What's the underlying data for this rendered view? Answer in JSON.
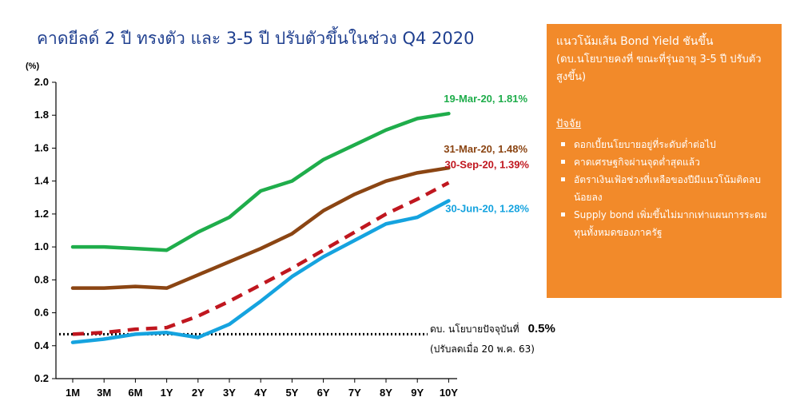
{
  "title": "คาดยีลด์ 2 ปี ทรงตัว และ 3-5 ปี ปรับตัวขึ้นในช่วง Q4 2020",
  "panel": {
    "heading": "แนวโน้มเส้น Bond Yield ชันขึ้น",
    "subheading": "(ดบ.นโยบายคงที่ ขณะที่รุ่นอายุ 3-5 ปี ปรับตัวสูงขึ้น)",
    "factors_title": "ปัจจัย",
    "factors": [
      "ดอกเบี้ยนโยบายอยู่ที่ระดับต่ำต่อไป",
      "คาดเศรษฐกิจผ่านจุดต่ำสุดแล้ว",
      "อัตราเงินเฟ้อช่วงที่เหลือของปีมีแนวโน้มติดลบน้อยลง",
      "Supply bond เพิ่มขึ้นไม่มากเท่าแผนการระดมทุนทั้งหมดของภาครัฐ"
    ]
  },
  "policy_rate": {
    "label": "ดบ. นโยบายปัจจุบันที่",
    "value_text": "0.5%",
    "note": "(ปรับลดเมื่อ 20 พ.ค. 63)",
    "value": 0.47
  },
  "chart_data": {
    "type": "line",
    "ylabel": "(%)",
    "ylim": [
      0.2,
      2.0
    ],
    "yticks": [
      0.2,
      0.4,
      0.6,
      0.8,
      1.0,
      1.2,
      1.4,
      1.6,
      1.8,
      2.0
    ],
    "ytick_labels": [
      "0.2",
      "0.4",
      "0.6",
      "0.8",
      "1.0",
      "1.2",
      "1.4",
      "1.6",
      "1.8",
      "2.0"
    ],
    "categories": [
      "1M",
      "3M",
      "6M",
      "1Y",
      "2Y",
      "3Y",
      "4Y",
      "5Y",
      "6Y",
      "7Y",
      "8Y",
      "9Y",
      "10Y"
    ],
    "series": [
      {
        "name": "19-Mar-20, 1.81%",
        "color": "#1fad4b",
        "dashed": false,
        "values": [
          1.0,
          1.0,
          0.99,
          0.98,
          1.09,
          1.18,
          1.34,
          1.4,
          1.53,
          1.62,
          1.71,
          1.78,
          1.81
        ]
      },
      {
        "name": "31-Mar-20, 1.48%",
        "color": "#8b4513",
        "dashed": false,
        "values": [
          0.75,
          0.75,
          0.76,
          0.75,
          0.83,
          0.91,
          0.99,
          1.08,
          1.22,
          1.32,
          1.4,
          1.45,
          1.48
        ]
      },
      {
        "name": "30-Sep-20, 1.39%",
        "color": "#c0171f",
        "dashed": true,
        "values": [
          0.47,
          0.48,
          0.5,
          0.51,
          0.58,
          0.67,
          0.77,
          0.87,
          0.98,
          1.09,
          1.2,
          1.29,
          1.39
        ]
      },
      {
        "name": "30-Jun-20, 1.28%",
        "color": "#15a3df",
        "dashed": false,
        "values": [
          0.42,
          0.44,
          0.47,
          0.48,
          0.45,
          0.53,
          0.67,
          0.82,
          0.94,
          1.04,
          1.14,
          1.18,
          1.28
        ]
      }
    ]
  }
}
